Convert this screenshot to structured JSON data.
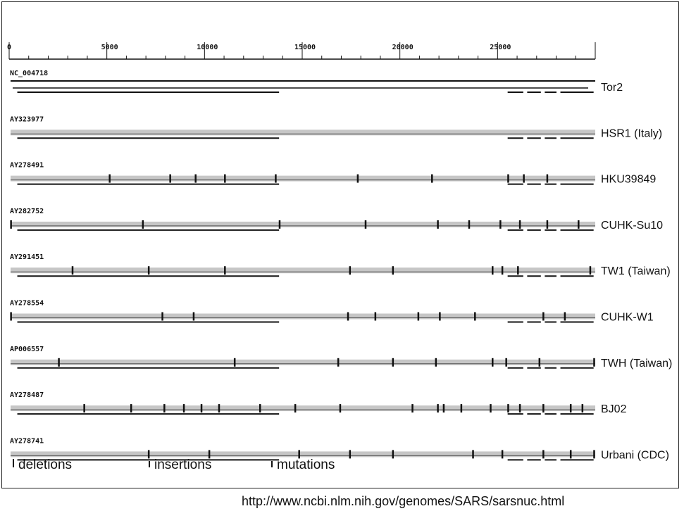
{
  "axis": {
    "labels": [
      "0",
      "5000",
      "10000",
      "15000",
      "20000",
      "25000"
    ],
    "values": [
      0,
      5000,
      10000,
      15000,
      20000,
      25000
    ],
    "max": 30000
  },
  "genomes": [
    {
      "accession": "NC_004718",
      "strain": "Tor2",
      "variants": []
    },
    {
      "accession": "AY323977",
      "strain": "HSR1 (Italy)",
      "variants": []
    },
    {
      "accession": "AY278491",
      "strain": "HKU39849",
      "variants": [
        5100,
        8200,
        9500,
        11000,
        13600,
        17800,
        21600,
        25500,
        26300,
        27500
      ]
    },
    {
      "accession": "AY282752",
      "strain": "CUHK-Su10",
      "variants": [
        50,
        6800,
        13800,
        18200,
        21900,
        23500,
        25100,
        26100,
        27500,
        29100
      ]
    },
    {
      "accession": "AY291451",
      "strain": "TW1 (Taiwan)",
      "variants": [
        3200,
        7100,
        11000,
        17400,
        19600,
        24700,
        25200,
        26000,
        29700
      ]
    },
    {
      "accession": "AY278554",
      "strain": "CUHK-W1",
      "variants": [
        50,
        7800,
        9400,
        17300,
        18700,
        20900,
        22000,
        23800,
        27300,
        28400
      ]
    },
    {
      "accession": "AP006557",
      "strain": "TWH (Taiwan)",
      "variants": [
        2500,
        11500,
        16800,
        19600,
        21800,
        24700,
        25400,
        27100,
        29900
      ]
    },
    {
      "accession": "AY278487",
      "strain": "BJ02",
      "variants": [
        3800,
        6200,
        7900,
        8900,
        9800,
        10700,
        12800,
        14600,
        16900,
        20600,
        21900,
        22200,
        23100,
        24600,
        25500,
        26100,
        27300,
        28700,
        29300
      ]
    },
    {
      "accession": "AY278741",
      "strain": "Urbani (CDC)",
      "variants": [
        7100,
        10200,
        14800,
        17400,
        19600,
        23700,
        25200,
        27300,
        28700,
        29900
      ]
    }
  ],
  "legend": {
    "deletions": "deletions",
    "insertions": "insertions",
    "mutations": "mutations"
  },
  "source_url": "http://www.ncbi.nlm.nih.gov/genomes/SARS/sarsnuc.html"
}
